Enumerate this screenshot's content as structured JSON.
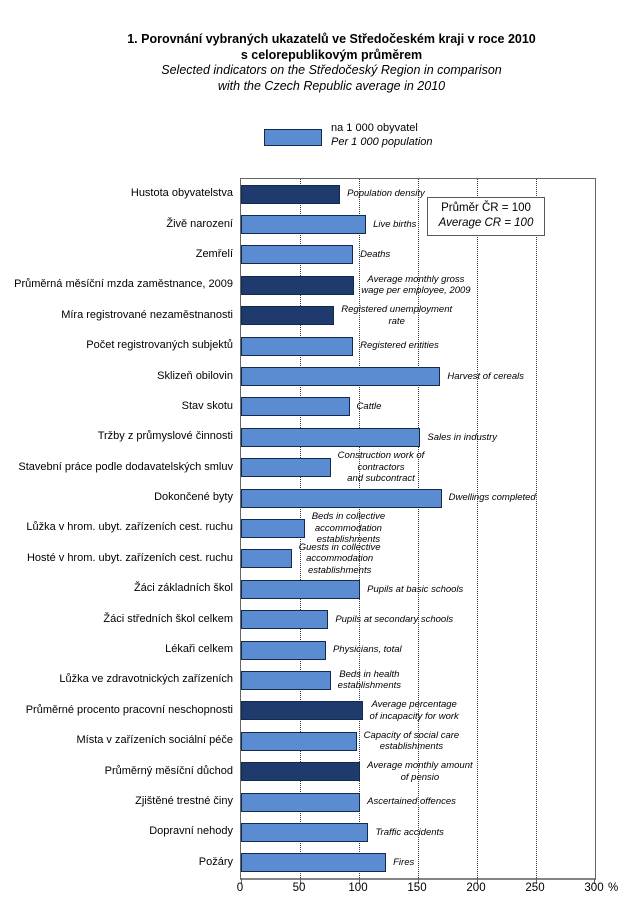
{
  "title": {
    "line1_cs": "1. Porovnání vybraných ukazatelů ve Středočeském kraji v roce 2010",
    "line2_cs": "s celorepublikovým průměrem",
    "line3_en": "Selected indicators on the Středočeský Region in comparison",
    "line4_en": "with the Czech Republic average in 2010"
  },
  "legend": {
    "label_cs": "na 1 000 obyvatel",
    "label_en": "Per 1 000 population"
  },
  "note_box": {
    "line1_cs": "Průměr ČR = 100",
    "line2_en": "Average CR = 100"
  },
  "axis": {
    "unit": "%"
  },
  "colors": {
    "bar_light": "#5b8bd0",
    "bar_dark": "#1f3b6d",
    "bar_border": "#122a4d"
  },
  "chart_data": {
    "type": "bar",
    "orientation": "horizontal",
    "title_cs": "1. Porovnání vybraných ukazatelů ve Středočeském kraji v roce 2010 s celorepublikovým průměrem",
    "title_en": "Selected indicators on the Středočeský Region in comparison with the Czech Republic average in 2010",
    "legend_label": "na 1 000 obyvatel / Per 1 000 population",
    "reference_note": "Průměr ČR = 100 / Average CR = 100",
    "xlabel": "%",
    "xlim": [
      0,
      300
    ],
    "xticks": [
      0,
      50,
      100,
      150,
      200,
      250,
      300
    ],
    "grid": "vertical-dotted",
    "bars": [
      {
        "slug": "population-density",
        "label_cs": "Hustota obyvatelstva",
        "label_en": "Population density",
        "value": 84,
        "shade": "dark"
      },
      {
        "slug": "live-births",
        "label_cs": "Živě narození",
        "label_en": "Live births",
        "value": 106,
        "shade": "light"
      },
      {
        "slug": "deaths",
        "label_cs": "Zemřelí",
        "label_en": "Deaths",
        "value": 95,
        "shade": "light"
      },
      {
        "slug": "avg-monthly-wage",
        "label_cs": "Průměrná měsíční mzda zaměstnance, 2009",
        "label_en": "Average monthly gross\nwage per employee,  2009",
        "value": 96,
        "shade": "dark"
      },
      {
        "slug": "registered-unemployment-rate",
        "label_cs": "Míra registrované nezaměstnanosti",
        "label_en": "Registered unemployment\nrate",
        "value": 79,
        "shade": "dark"
      },
      {
        "slug": "registered-entities",
        "label_cs": "Počet registrovaných subjektů",
        "label_en": "Registered entities",
        "value": 95,
        "shade": "light"
      },
      {
        "slug": "harvest-of-cereals",
        "label_cs": "Sklizeň obilovin",
        "label_en": "Harvest of cereals",
        "value": 169,
        "shade": "light"
      },
      {
        "slug": "cattle",
        "label_cs": "Stav skotu",
        "label_en": "Cattle",
        "value": 92,
        "shade": "light"
      },
      {
        "slug": "sales-in-industry",
        "label_cs": "Tržby z průmyslové činnosti",
        "label_en": "Sales in industry",
        "value": 152,
        "shade": "light"
      },
      {
        "slug": "construction-work",
        "label_cs": "Stavební práce podle dodavatelských smluv",
        "label_en": "Construction work of\ncontractors\nand subcontract",
        "value": 76,
        "shade": "light"
      },
      {
        "slug": "dwellings-completed",
        "label_cs": "Dokončené byty",
        "label_en": "Dwellings completed",
        "value": 170,
        "shade": "light"
      },
      {
        "slug": "beds-collective-accommodation",
        "label_cs": "Lůžka v hrom. ubyt. zařízeních cest. ruchu",
        "label_en": "Beds in collective\naccommodation\nestablishments",
        "value": 54,
        "shade": "light"
      },
      {
        "slug": "guests-collective-accommodation",
        "label_cs": "Hosté v hrom. ubyt. zařízeních cest. ruchu",
        "label_en": "Guests in collective\naccommodation\nestablishments",
        "value": 43,
        "shade": "light"
      },
      {
        "slug": "pupils-basic-schools",
        "label_cs": "Žáci základních škol",
        "label_en": "Pupils at basic schools",
        "value": 101,
        "shade": "light"
      },
      {
        "slug": "pupils-secondary-schools",
        "label_cs": "Žáci středních škol celkem",
        "label_en": "Pupils at secondary schools",
        "value": 74,
        "shade": "light"
      },
      {
        "slug": "physicians-total",
        "label_cs": "Lékaři celkem",
        "label_en": "Physicians, total",
        "value": 72,
        "shade": "light"
      },
      {
        "slug": "beds-health-establishments",
        "label_cs": "Lůžka ve zdravotnických zařízeních",
        "label_en": "Beds in health\nestablishments",
        "value": 76,
        "shade": "light"
      },
      {
        "slug": "incapacity-for-work",
        "label_cs": "Průměrné procento pracovní neschopnosti",
        "label_en": "Average percentage\nof incapacity for work",
        "value": 103,
        "shade": "dark"
      },
      {
        "slug": "social-care-capacity",
        "label_cs": "Místa v zařízeních sociální péče",
        "label_en": "Capacity of social care\nestablishments",
        "value": 98,
        "shade": "light"
      },
      {
        "slug": "average-monthly-pension",
        "label_cs": "Průměrný měsíční důchod",
        "label_en": "Average monthly  amount\nof pensio",
        "value": 101,
        "shade": "dark"
      },
      {
        "slug": "ascertained-offences",
        "label_cs": "Zjištěné trestné činy",
        "label_en": "Ascertained offences",
        "value": 101,
        "shade": "light"
      },
      {
        "slug": "traffic-accidents",
        "label_cs": "Dopravní nehody",
        "label_en": "Traffic accidents",
        "value": 108,
        "shade": "light"
      },
      {
        "slug": "fires",
        "label_cs": "Požáry",
        "label_en": "Fires",
        "value": 123,
        "shade": "light"
      }
    ]
  }
}
